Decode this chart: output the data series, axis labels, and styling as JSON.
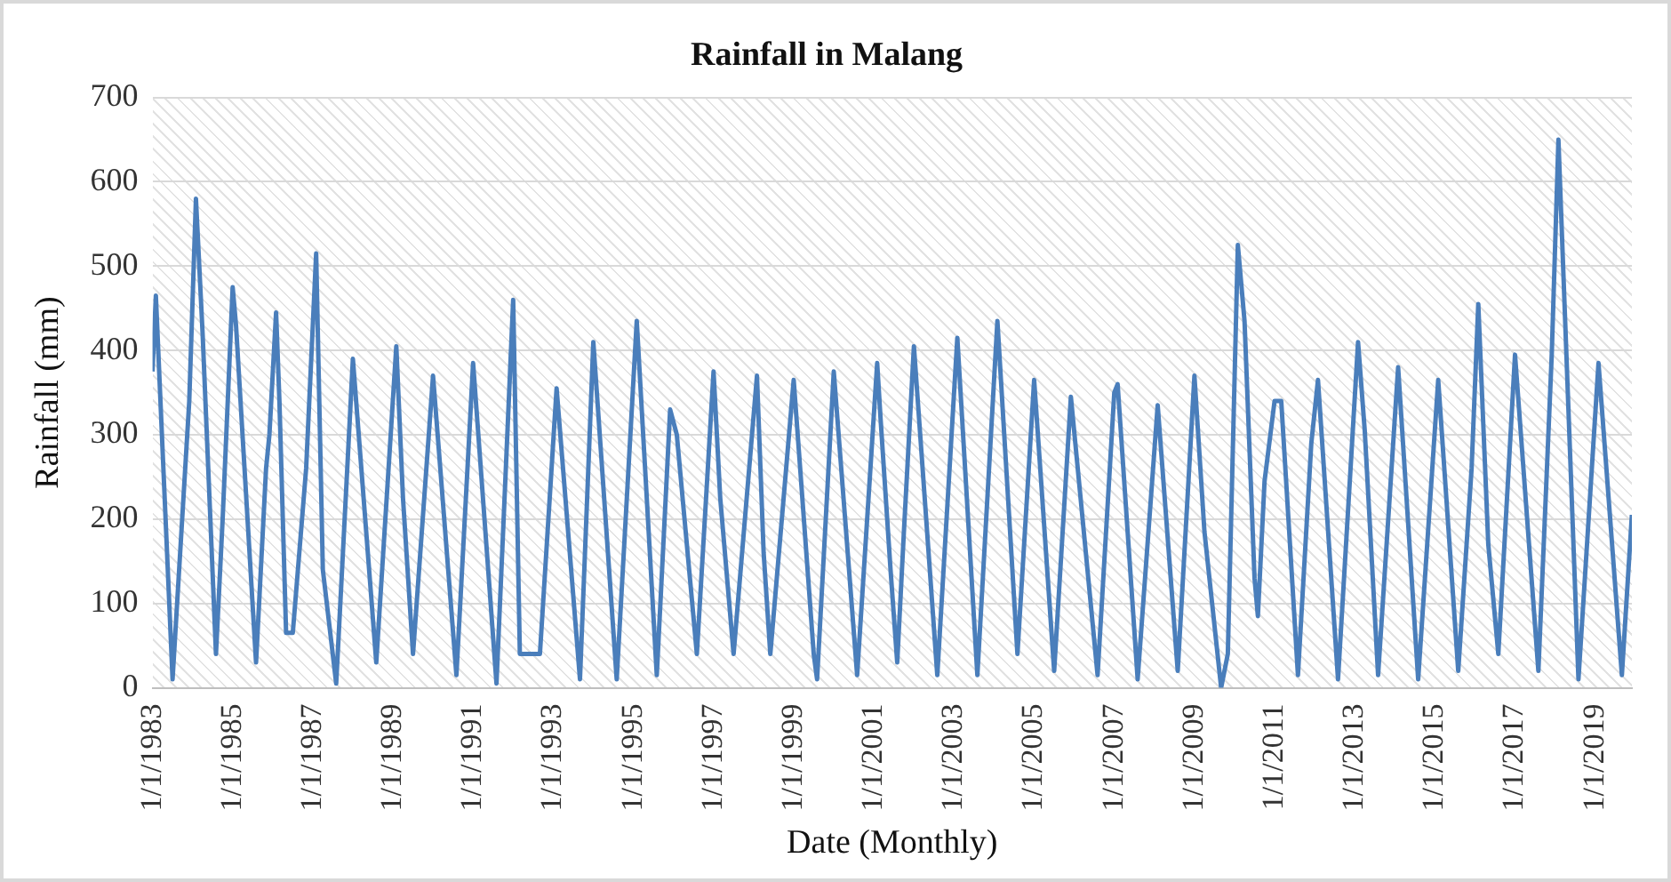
{
  "chart_data": {
    "type": "line",
    "title": "Rainfall in Malang",
    "xlabel": "Date (Monthly)",
    "ylabel": "Rainfall (mm)",
    "xlim": [
      "1983-01",
      "2019-12"
    ],
    "xticks": [
      {
        "value": "1983-01",
        "label": "1/1/1983"
      },
      {
        "value": "1985-01",
        "label": "1/1/1985"
      },
      {
        "value": "1987-01",
        "label": "1/1/1987"
      },
      {
        "value": "1989-01",
        "label": "1/1/1989"
      },
      {
        "value": "1991-01",
        "label": "1/1/1991"
      },
      {
        "value": "1993-01",
        "label": "1/1/1993"
      },
      {
        "value": "1995-01",
        "label": "1/1/1995"
      },
      {
        "value": "1997-01",
        "label": "1/1/1997"
      },
      {
        "value": "1999-01",
        "label": "1/1/1999"
      },
      {
        "value": "2001-01",
        "label": "1/1/2001"
      },
      {
        "value": "2003-01",
        "label": "1/1/2003"
      },
      {
        "value": "2005-01",
        "label": "1/1/2005"
      },
      {
        "value": "2007-01",
        "label": "1/1/2007"
      },
      {
        "value": "2009-01",
        "label": "1/1/2009"
      },
      {
        "value": "2011-01",
        "label": "1/1/2011"
      },
      {
        "value": "2013-01",
        "label": "1/1/2013"
      },
      {
        "value": "2015-01",
        "label": "1/1/2015"
      },
      {
        "value": "2017-01",
        "label": "1/1/2017"
      },
      {
        "value": "2019-01",
        "label": "1/1/2019"
      }
    ],
    "ylim": [
      0,
      700
    ],
    "yticks": [
      0,
      100,
      200,
      300,
      400,
      500,
      600,
      700
    ],
    "grid": "y",
    "legend": false,
    "marker": "none",
    "line_style": "solid",
    "x": [
      "1983-01",
      "1983-02",
      "1983-07",
      "1983-12",
      "1984-02",
      "1984-04",
      "1984-08",
      "1984-10",
      "1985-01",
      "1985-02",
      "1985-08",
      "1985-11",
      "1985-12",
      "1986-02",
      "1986-03",
      "1986-05",
      "1986-07",
      "1986-11",
      "1987-02",
      "1987-04",
      "1987-08",
      "1988-01",
      "1988-08",
      "1989-02",
      "1989-04",
      "1989-07",
      "1990-01",
      "1990-08",
      "1991-01",
      "1991-08",
      "1992-01",
      "1992-03",
      "1992-09",
      "1993-02",
      "1993-09",
      "1994-01",
      "1994-08",
      "1995-02",
      "1995-08",
      "1995-12",
      "1996-02",
      "1996-08",
      "1997-01",
      "1997-03",
      "1997-07",
      "1998-02",
      "1998-04",
      "1998-06",
      "1999-01",
      "1999-07",
      "1999-08",
      "2000-01",
      "2000-08",
      "2001-02",
      "2001-03",
      "2001-06",
      "2001-08",
      "2001-10",
      "2002-01",
      "2002-08",
      "2003-02",
      "2003-08",
      "2004-02",
      "2004-08",
      "2005-01",
      "2005-07",
      "2005-12",
      "2006-08",
      "2007-01",
      "2007-02",
      "2007-08",
      "2008-02",
      "2008-08",
      "2009-01",
      "2009-04",
      "2009-09",
      "2009-11",
      "2010-02",
      "2010-04",
      "2010-07",
      "2010-08",
      "2010-10",
      "2011-01",
      "2011-03",
      "2011-08",
      "2011-12",
      "2012-02",
      "2012-08",
      "2013-02",
      "2013-04",
      "2013-08",
      "2014-02",
      "2014-08",
      "2015-02",
      "2015-08",
      "2015-12",
      "2016-02",
      "2016-05",
      "2016-08",
      "2017-01",
      "2017-08",
      "2017-12",
      "2018-02",
      "2018-08",
      "2019-02",
      "2019-09",
      "2019-12"
    ],
    "series": [
      {
        "color": "#4a7ebb",
        "values": [
          375,
          465,
          10,
          340,
          580,
          420,
          40,
          200,
          475,
          430,
          30,
          260,
          300,
          445,
          340,
          65,
          65,
          260,
          515,
          140,
          5,
          390,
          30,
          405,
          225,
          40,
          370,
          15,
          385,
          5,
          460,
          40,
          40,
          355,
          10,
          410,
          10,
          435,
          15,
          330,
          300,
          40,
          375,
          225,
          40,
          370,
          160,
          40,
          365,
          40,
          10,
          375,
          15,
          385,
          320,
          140,
          30,
          185,
          405,
          15,
          415,
          15,
          435,
          40,
          365,
          20,
          345,
          15,
          350,
          360,
          10,
          335,
          20,
          370,
          185,
          0,
          40,
          525,
          435,
          130,
          85,
          245,
          340,
          340,
          15,
          290,
          365,
          10,
          410,
          305,
          15,
          380,
          10,
          365,
          20,
          260,
          455,
          170,
          40,
          395,
          20,
          395,
          650,
          10,
          385,
          15,
          205
        ]
      }
    ]
  }
}
